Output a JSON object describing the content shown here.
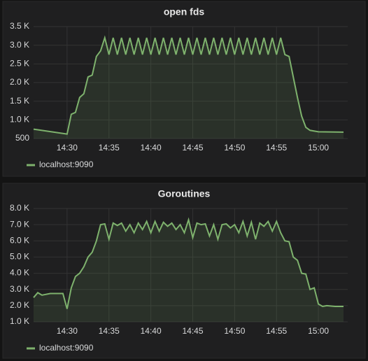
{
  "chart_data": [
    {
      "type": "line",
      "title": "open fds",
      "fill": true,
      "grid": true,
      "x": [
        866,
        870,
        870.5,
        871,
        871.5,
        872,
        872.5,
        873,
        873.5,
        874,
        874.5,
        875,
        875.5,
        876,
        876.5,
        877,
        877.5,
        878,
        878.5,
        879,
        879.5,
        880,
        880.5,
        881,
        881.5,
        882,
        882.5,
        883,
        883.5,
        884,
        884.5,
        885,
        885.5,
        886,
        886.5,
        887,
        887.5,
        888,
        888.5,
        889,
        889.5,
        890,
        890.5,
        891,
        891.5,
        892,
        892.5,
        893,
        893.5,
        894,
        894.5,
        895,
        895.5,
        896,
        896.5,
        897,
        897.5,
        898,
        898.5,
        899,
        900,
        903
      ],
      "series": [
        {
          "name": "localhost:9090",
          "color": "#7eb26d",
          "values": [
            750,
            620,
            1150,
            1200,
            1600,
            1700,
            2150,
            2200,
            2700,
            2850,
            3200,
            2750,
            3200,
            2750,
            3200,
            2750,
            3200,
            2750,
            3200,
            2750,
            3200,
            2750,
            3200,
            2750,
            3200,
            2750,
            3200,
            2750,
            3200,
            2750,
            3200,
            2750,
            3200,
            2750,
            3200,
            2750,
            3200,
            2750,
            3200,
            2750,
            3200,
            2750,
            3200,
            2750,
            3200,
            2750,
            3200,
            2750,
            3200,
            2750,
            3200,
            2750,
            3200,
            2750,
            2700,
            2150,
            1600,
            1100,
            800,
            720,
            680,
            670
          ]
        }
      ],
      "xlim": [
        866,
        903.5
      ],
      "xticks": [
        {
          "value": 870,
          "label": "14:30"
        },
        {
          "value": 875,
          "label": "14:35"
        },
        {
          "value": 880,
          "label": "14:40"
        },
        {
          "value": 885,
          "label": "14:45"
        },
        {
          "value": 890,
          "label": "14:50"
        },
        {
          "value": 895,
          "label": "14:55"
        },
        {
          "value": 900,
          "label": "15:00"
        }
      ],
      "ylim": [
        500,
        3500
      ],
      "yticks": [
        500,
        {
          "value": 1000,
          "label": "1.0 K"
        },
        {
          "value": 1500,
          "label": "1.5 K"
        },
        {
          "value": 2000,
          "label": "2.0 K"
        },
        {
          "value": 2500,
          "label": "2.5 K"
        },
        {
          "value": 3000,
          "label": "3.0 K"
        },
        {
          "value": 3500,
          "label": "3.5 K"
        }
      ]
    },
    {
      "type": "line",
      "title": "Goroutines",
      "fill": true,
      "grid": true,
      "x": [
        866,
        866.5,
        867,
        868,
        869.5,
        870,
        870.5,
        871,
        871.5,
        872,
        872.5,
        873,
        873.5,
        874,
        874.5,
        875,
        875.5,
        876,
        876.5,
        877,
        877.5,
        878,
        878.5,
        879,
        879.5,
        880,
        880.5,
        881,
        881.5,
        882,
        882.5,
        883,
        883.5,
        884,
        884.5,
        885,
        885.5,
        886,
        886.5,
        887,
        887.5,
        888,
        888.5,
        889,
        889.5,
        890,
        890.5,
        891,
        891.5,
        892,
        892.5,
        893,
        893.5,
        894,
        894.5,
        895,
        895.5,
        896,
        896.5,
        897,
        897.5,
        898,
        898.5,
        899,
        899.5,
        900,
        900.5,
        901,
        902,
        903
      ],
      "series": [
        {
          "name": "localhost:9090",
          "color": "#7eb26d",
          "values": [
            2500,
            2800,
            2650,
            2750,
            2750,
            1800,
            3100,
            3800,
            4000,
            4400,
            5000,
            5300,
            6000,
            7000,
            7050,
            6100,
            7100,
            6950,
            7100,
            6600,
            7000,
            6500,
            7100,
            6700,
            7200,
            6500,
            7200,
            6600,
            7150,
            6900,
            7100,
            6700,
            7000,
            6500,
            7300,
            6200,
            7100,
            7000,
            7050,
            6300,
            7000,
            6100,
            7000,
            7050,
            6800,
            7000,
            6500,
            7200,
            6300,
            7150,
            6100,
            7100,
            6900,
            7200,
            6600,
            7200,
            6500,
            6000,
            5950,
            5000,
            4800,
            4000,
            3950,
            3000,
            3100,
            2100,
            1950,
            2000,
            1950,
            1950
          ]
        }
      ],
      "xlim": [
        866,
        903.5
      ],
      "xticks": [
        {
          "value": 870,
          "label": "14:30"
        },
        {
          "value": 875,
          "label": "14:35"
        },
        {
          "value": 880,
          "label": "14:40"
        },
        {
          "value": 885,
          "label": "14:45"
        },
        {
          "value": 890,
          "label": "14:50"
        },
        {
          "value": 895,
          "label": "14:55"
        },
        {
          "value": 900,
          "label": "15:00"
        }
      ],
      "ylim": [
        1000,
        8000
      ],
      "yticks": [
        {
          "value": 1000,
          "label": "1.0 K"
        },
        {
          "value": 2000,
          "label": "2.0 K"
        },
        {
          "value": 3000,
          "label": "3.0 K"
        },
        {
          "value": 4000,
          "label": "4.0 K"
        },
        {
          "value": 5000,
          "label": "5.0 K"
        },
        {
          "value": 6000,
          "label": "6.0 K"
        },
        {
          "value": 7000,
          "label": "7.0 K"
        },
        {
          "value": 8000,
          "label": "8.0 K"
        }
      ]
    }
  ]
}
